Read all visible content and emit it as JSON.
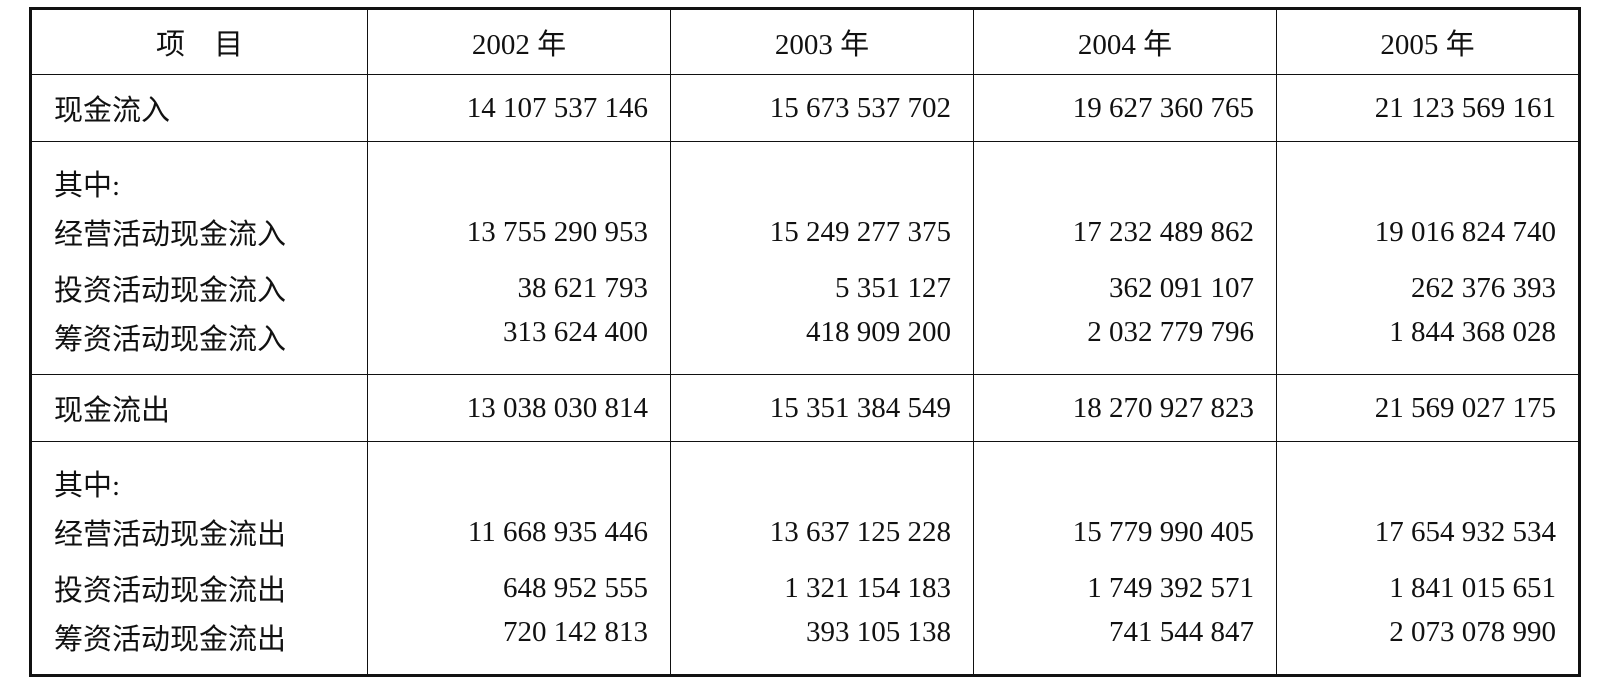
{
  "table": {
    "header": [
      "项　目",
      "2002 年",
      "2003 年",
      "2004 年",
      "2005 年"
    ],
    "sections": [
      {
        "rows": [
          [
            "现金流入",
            "14 107 537 146",
            "15 673 537 702",
            "19 627 360 765",
            "21 123 569 161"
          ]
        ]
      },
      {
        "rows": [
          [
            "其中:"
          ],
          [
            "经营活动现金流入",
            "13 755 290 953",
            "15 249 277 375",
            "17 232 489 862",
            "19 016 824 740"
          ],
          [
            "投资活动现金流入",
            "38 621 793",
            "5 351 127",
            "362 091 107",
            "262 376 393"
          ],
          [
            "筹资活动现金流入",
            "313 624 400",
            "418 909 200",
            "2 032 779 796",
            "1 844 368 028"
          ]
        ]
      },
      {
        "rows": [
          [
            "现金流出",
            "13 038 030 814",
            "15 351 384 549",
            "18 270 927 823",
            "21 569 027 175"
          ]
        ]
      },
      {
        "rows": [
          [
            "其中:"
          ],
          [
            "经营活动现金流出",
            "11 668 935 446",
            "13 637 125 228",
            "15 779 990 405",
            "17 654 932 534"
          ],
          [
            "投资活动现金流出",
            "648 952 555",
            "1 321 154 183",
            "1 749 392 571",
            "1 841 015 651"
          ],
          [
            "筹资活动现金流出",
            "720 142 813",
            "393 105 138",
            "741 544 847",
            "2 073 078 990"
          ]
        ]
      }
    ]
  }
}
